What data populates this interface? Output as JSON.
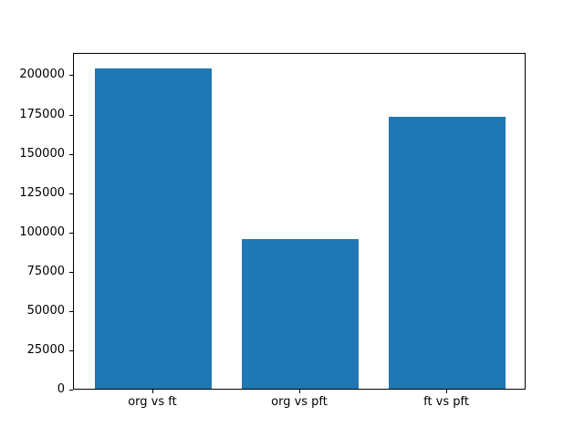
{
  "chart_data": {
    "type": "bar",
    "categories": [
      "org vs ft",
      "org vs pft",
      "ft vs pft"
    ],
    "values": [
      204000,
      95000,
      173000
    ],
    "title": "",
    "xlabel": "",
    "ylabel": "",
    "ylim": [
      0,
      214200
    ],
    "yticks": [
      0,
      25000,
      50000,
      75000,
      100000,
      125000,
      150000,
      175000,
      200000
    ],
    "bar_color": "#1f77b4",
    "spine_color": "#000000",
    "grid": false,
    "legend": null
  }
}
